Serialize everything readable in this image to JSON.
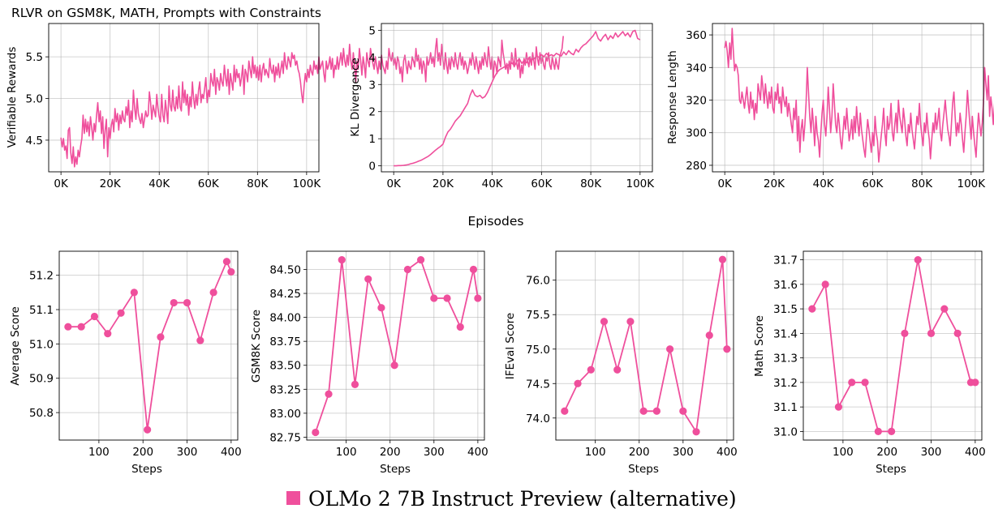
{
  "figure": {
    "title": "RLVR on GSM8K, MATH, Prompts with Constraints",
    "shared_xlabel": "Episodes",
    "legend": {
      "label": "OLMo 2 7B Instruct Preview (alternative)",
      "color": "#ef4f9c"
    }
  },
  "chart_data": [
    {
      "type": "line",
      "ylabel": "Verifiable Rewards",
      "xlim": [
        -5000,
        105000
      ],
      "ylim": [
        4.12,
        5.9
      ],
      "xticks": [
        0,
        20000,
        40000,
        60000,
        80000,
        100000
      ],
      "xtick_labels": [
        "0K",
        "20K",
        "40K",
        "60K",
        "80K",
        "100K"
      ],
      "yticks": [
        4.5,
        5.0,
        5.5
      ],
      "ytick_labels": [
        "4.5",
        "5.0",
        "5.5"
      ],
      "grid": true,
      "color": "#ef4f9c",
      "x_start": 0,
      "x_step": 500,
      "y": [
        4.53,
        4.42,
        4.52,
        4.38,
        4.43,
        4.28,
        4.62,
        4.65,
        4.35,
        4.22,
        4.42,
        4.18,
        4.3,
        4.21,
        4.38,
        4.3,
        4.43,
        4.52,
        4.8,
        4.58,
        4.75,
        4.6,
        4.72,
        4.55,
        4.78,
        4.65,
        4.5,
        4.7,
        4.6,
        4.8,
        4.95,
        4.72,
        4.85,
        4.58,
        4.78,
        4.4,
        4.62,
        4.75,
        4.3,
        4.65,
        4.52,
        4.68,
        4.75,
        4.6,
        4.88,
        4.72,
        4.82,
        4.62,
        4.8,
        4.7,
        4.85,
        4.75,
        4.72,
        4.9,
        4.8,
        4.98,
        4.65,
        4.85,
        4.72,
        5.1,
        4.88,
        4.75,
        5.0,
        4.82,
        4.75,
        4.7,
        4.82,
        4.65,
        4.75,
        4.85,
        4.78,
        4.8,
        5.08,
        4.95,
        4.75,
        4.92,
        4.85,
        4.78,
        5.05,
        4.88,
        4.78,
        4.72,
        5.05,
        4.8,
        4.72,
        4.98,
        4.85,
        4.7,
        5.15,
        4.92,
        4.85,
        5.1,
        4.9,
        4.85,
        5.02,
        4.88,
        5.15,
        4.9,
        4.85,
        5.2,
        4.95,
        5.1,
        4.92,
        5.05,
        4.8,
        5.02,
        4.9,
        5.2,
        5.0,
        4.88,
        5.05,
        4.92,
        5.1,
        5.2,
        4.95,
        5.05,
        5.0,
        5.12,
        5.25,
        4.95,
        5.1,
        5.02,
        5.3,
        5.2,
        5.15,
        5.35,
        5.05,
        5.25,
        5.2,
        5.1,
        5.3,
        5.2,
        5.15,
        5.4,
        5.25,
        5.15,
        5.35,
        5.05,
        5.3,
        5.2,
        5.1,
        5.4,
        5.2,
        5.35,
        5.25,
        5.3,
        5.15,
        5.25,
        5.4,
        5.05,
        5.35,
        5.3,
        5.2,
        5.45,
        5.35,
        5.25,
        5.5,
        5.3,
        5.4,
        5.25,
        5.38,
        5.22,
        5.4,
        5.2,
        5.35,
        5.42,
        5.28,
        5.35,
        5.3,
        5.25,
        5.48,
        5.35,
        5.3,
        5.4,
        5.2,
        5.38,
        5.28,
        5.42,
        5.25,
        5.35,
        5.45,
        5.3,
        5.55,
        5.4,
        5.35,
        5.5,
        5.45,
        5.38,
        5.55,
        5.48,
        5.52,
        5.4,
        5.45,
        5.35,
        5.3,
        5.2,
        5.05,
        4.95,
        5.15,
        5.3,
        5.2,
        5.35,
        5.25,
        5.4,
        5.32,
        5.28,
        5.45,
        5.35,
        5.4,
        5.3,
        5.5,
        5.35,
        5.4,
        5.45,
        5.3,
        5.2,
        5.45,
        5.35,
        5.4,
        5.5,
        5.35,
        5.48,
        5.25,
        5.4,
        5.35,
        5.5,
        5.35,
        5.45,
        5.55,
        5.4,
        5.6,
        5.45,
        5.38,
        5.52,
        5.4,
        5.65,
        5.45,
        5.35,
        5.55,
        5.4,
        5.2,
        5.45,
        5.35,
        5.6,
        5.45,
        5.28,
        5.5,
        5.4,
        5.25,
        5.55,
        5.45,
        5.38,
        5.6,
        5.5,
        5.42,
        5.35,
        5.5,
        5.4,
        5.3,
        5.45,
        5.35,
        5.52,
        5.4,
        5.35,
        5.3,
        5.45,
        5.35,
        5.6,
        5.5,
        5.45,
        5.55,
        5.4,
        5.48,
        5.35,
        5.5,
        5.45,
        5.3,
        5.38,
        5.2,
        5.45,
        5.52,
        5.4,
        5.3,
        5.45,
        5.38,
        5.35,
        5.5,
        5.45,
        5.38,
        5.6,
        5.45,
        5.52,
        5.35,
        5.48,
        5.3,
        5.45,
        5.4,
        5.2,
        5.5,
        5.4,
        5.45,
        5.55,
        5.42,
        5.5,
        5.38,
        5.6,
        5.72,
        5.45,
        5.55,
        5.4,
        5.65,
        5.45,
        5.35,
        5.55,
        5.4,
        5.3,
        5.48,
        5.35,
        5.5,
        5.45,
        5.38,
        5.55,
        5.42,
        5.35,
        5.48,
        5.55,
        5.4,
        5.5,
        5.35,
        5.45,
        5.4,
        5.3,
        5.38,
        5.48,
        5.4,
        5.55,
        5.45,
        5.35,
        5.5,
        5.4,
        5.3,
        5.45,
        5.35,
        5.5,
        5.4,
        5.55,
        5.45,
        5.38,
        5.62,
        5.48,
        5.35,
        5.5,
        5.25,
        5.45,
        5.4,
        5.3,
        5.5,
        5.45,
        5.38,
        5.7,
        5.55,
        5.45,
        5.35,
        5.42,
        5.3,
        5.45,
        5.35,
        5.55,
        5.45,
        5.38,
        5.6,
        5.42,
        5.35,
        5.48,
        5.25,
        5.4,
        5.3,
        5.48,
        5.4,
        5.55,
        5.45,
        5.38,
        5.5,
        5.4,
        5.55,
        5.45,
        5.35,
        5.62,
        5.48,
        5.4,
        5.55,
        5.42,
        5.5,
        5.4,
        5.35,
        5.5,
        5.45,
        5.55,
        5.4,
        5.35,
        5.5,
        5.42,
        5.35,
        5.48,
        5.4,
        5.35,
        5.5,
        5.55,
        5.6,
        5.75
      ]
    },
    {
      "type": "line",
      "ylabel": "KL Divergence",
      "xlim": [
        -5000,
        105000
      ],
      "ylim": [
        -0.22,
        5.25
      ],
      "xticks": [
        0,
        20000,
        40000,
        60000,
        80000,
        100000
      ],
      "xtick_labels": [
        "0K",
        "20K",
        "40K",
        "60K",
        "80K",
        "100K"
      ],
      "yticks": [
        0,
        1,
        2,
        3,
        4,
        5
      ],
      "ytick_labels": [
        "0",
        "1",
        "2",
        "3",
        "4",
        "5"
      ],
      "grid": true,
      "color": "#ef4f9c",
      "x_start": 0,
      "x_step": 1000,
      "y": [
        0.0,
        0.0,
        0.01,
        0.01,
        0.02,
        0.03,
        0.05,
        0.08,
        0.1,
        0.13,
        0.17,
        0.2,
        0.25,
        0.3,
        0.35,
        0.42,
        0.5,
        0.58,
        0.65,
        0.72,
        0.8,
        1.05,
        1.25,
        1.35,
        1.5,
        1.65,
        1.75,
        1.85,
        2.0,
        2.15,
        2.3,
        2.6,
        2.8,
        2.6,
        2.55,
        2.6,
        2.5,
        2.55,
        2.7,
        2.9,
        3.1,
        3.3,
        3.45,
        3.55,
        3.6,
        3.65,
        3.7,
        3.75,
        3.8,
        3.68,
        3.85,
        3.95,
        3.78,
        3.9,
        3.8,
        4.0,
        3.9,
        3.95,
        4.05,
        4.0,
        4.1,
        4.02,
        4.15,
        4.05,
        4.1,
        4.05,
        4.15,
        4.1,
        4.05,
        4.2,
        4.1,
        4.25,
        4.15,
        4.1,
        4.3,
        4.2,
        4.35,
        4.45,
        4.5,
        4.6,
        4.7,
        4.8,
        4.95,
        4.7,
        4.6,
        4.75,
        4.85,
        4.65,
        4.8,
        4.7,
        4.9,
        4.75,
        4.85,
        4.95,
        4.8,
        4.9,
        4.75,
        4.95,
        5.0,
        4.7,
        4.65
      ]
    },
    {
      "type": "line",
      "ylabel": "Response Length",
      "xlim": [
        -5000,
        105000
      ],
      "ylim": [
        276,
        367
      ],
      "xticks": [
        0,
        20000,
        40000,
        60000,
        80000,
        100000
      ],
      "xtick_labels": [
        "0K",
        "20K",
        "40K",
        "60K",
        "80K",
        "100K"
      ],
      "yticks": [
        280,
        300,
        320,
        340,
        360
      ],
      "ytick_labels": [
        "280",
        "300",
        "320",
        "340",
        "360"
      ],
      "grid": true,
      "color": "#ef4f9c",
      "x_start": 0,
      "x_step": 500,
      "y": [
        352,
        356,
        350,
        340,
        355,
        345,
        364,
        350,
        338,
        342,
        340,
        335,
        320,
        318,
        325,
        320,
        315,
        322,
        328,
        318,
        312,
        325,
        315,
        320,
        308,
        318,
        312,
        330,
        325,
        320,
        335,
        328,
        318,
        330,
        322,
        315,
        325,
        318,
        328,
        315,
        312,
        325,
        320,
        330,
        318,
        322,
        312,
        328,
        320,
        316,
        322,
        310,
        318,
        312,
        305,
        300,
        315,
        308,
        320,
        295,
        310,
        288,
        302,
        308,
        295,
        305,
        318,
        340,
        325,
        310,
        300,
        315,
        305,
        292,
        310,
        300,
        295,
        285,
        300,
        312,
        320,
        305,
        298,
        310,
        328,
        315,
        300,
        310,
        330,
        318,
        305,
        300,
        312,
        305,
        295,
        290,
        300,
        310,
        302,
        315,
        305,
        295,
        300,
        308,
        296,
        310,
        300,
        316,
        306,
        298,
        312,
        302,
        296,
        290,
        285,
        298,
        308,
        302,
        295,
        288,
        300,
        292,
        310,
        300,
        295,
        282,
        290,
        298,
        305,
        315,
        300,
        292,
        310,
        302,
        306,
        318,
        300,
        295,
        305,
        312,
        300,
        320,
        310,
        305,
        300,
        315,
        308,
        298,
        292,
        305,
        300,
        312,
        302,
        296,
        290,
        300,
        310,
        305,
        318,
        305,
        298,
        292,
        306,
        300,
        312,
        302,
        296,
        284,
        295,
        306,
        300,
        312,
        302,
        308,
        315,
        300,
        295,
        305,
        312,
        320,
        310,
        302,
        298,
        292,
        305,
        318,
        325,
        310,
        298,
        306,
        300,
        312,
        305,
        296,
        288,
        300,
        310,
        326,
        315,
        305,
        296,
        310,
        300,
        292,
        285,
        300,
        312,
        305,
        298,
        306,
        318,
        340,
        330,
        320,
        335,
        310,
        322,
        315,
        305,
        318,
        300,
        310,
        322,
        308,
        315,
        300,
        295,
        305,
        312,
        302,
        296,
        310,
        300,
        308,
        315,
        325,
        318,
        305,
        296,
        310,
        300,
        312,
        318,
        305,
        296,
        300,
        306,
        314,
        322,
        330,
        348,
        335,
        320,
        310,
        300,
        315,
        306,
        298,
        312,
        302,
        296,
        310,
        305,
        300,
        312,
        302,
        296,
        310,
        322,
        315,
        306,
        300,
        312,
        308,
        302,
        296,
        300,
        315,
        305,
        300,
        310,
        305,
        312,
        302,
        298,
        308,
        305,
        300,
        312,
        320,
        305,
        298,
        302,
        312,
        306,
        300,
        315,
        325,
        318,
        310,
        302,
        296,
        308,
        300,
        305,
        312,
        302,
        298,
        310,
        318,
        305,
        300,
        312,
        306,
        298,
        302,
        310,
        305,
        300,
        320,
        310,
        302,
        296,
        306,
        312,
        305,
        298,
        310,
        302,
        300,
        312,
        306,
        300,
        296,
        305,
        310,
        300,
        315,
        330,
        350,
        335,
        310,
        298,
        306,
        302,
        308,
        300
      ]
    },
    {
      "type": "line",
      "marker": "circle",
      "xlabel": "Steps",
      "ylabel": "Average Score",
      "xlim": [
        10,
        415
      ],
      "ylim": [
        50.72,
        51.27
      ],
      "xticks": [
        100,
        200,
        300,
        400
      ],
      "xtick_labels": [
        "100",
        "200",
        "300",
        "400"
      ],
      "yticks": [
        50.8,
        50.9,
        51.0,
        51.1,
        51.2
      ],
      "ytick_labels": [
        "50.8",
        "50.9",
        "51.0",
        "51.1",
        "51.2"
      ],
      "grid": true,
      "color": "#ef4f9c",
      "x": [
        30,
        60,
        90,
        120,
        150,
        180,
        210,
        240,
        270,
        300,
        330,
        360,
        390,
        400
      ],
      "y": [
        51.05,
        51.05,
        51.08,
        51.03,
        51.09,
        51.15,
        50.75,
        51.02,
        51.12,
        51.12,
        51.01,
        51.15,
        51.24,
        51.21
      ]
    },
    {
      "type": "line",
      "marker": "circle",
      "xlabel": "Steps",
      "ylabel": "GSM8K Score",
      "xlim": [
        10,
        415
      ],
      "ylim": [
        82.72,
        84.69
      ],
      "xticks": [
        100,
        200,
        300,
        400
      ],
      "xtick_labels": [
        "100",
        "200",
        "300",
        "400"
      ],
      "yticks": [
        82.75,
        83.0,
        83.25,
        83.5,
        83.75,
        84.0,
        84.25,
        84.5
      ],
      "ytick_labels": [
        "82.75",
        "83.00",
        "83.25",
        "83.50",
        "83.75",
        "84.00",
        "84.25",
        "84.50"
      ],
      "grid": true,
      "color": "#ef4f9c",
      "x": [
        30,
        60,
        90,
        120,
        150,
        180,
        210,
        240,
        270,
        300,
        330,
        360,
        390,
        400
      ],
      "y": [
        82.8,
        83.2,
        84.6,
        83.3,
        84.4,
        84.1,
        83.5,
        84.5,
        84.6,
        84.2,
        84.2,
        83.9,
        84.5,
        84.2
      ]
    },
    {
      "type": "line",
      "marker": "circle",
      "xlabel": "Steps",
      "ylabel": "IFEval Score",
      "xlim": [
        10,
        415
      ],
      "ylim": [
        73.68,
        76.42
      ],
      "xticks": [
        100,
        200,
        300,
        400
      ],
      "xtick_labels": [
        "100",
        "200",
        "300",
        "400"
      ],
      "yticks": [
        74.0,
        74.5,
        75.0,
        75.5,
        76.0
      ],
      "ytick_labels": [
        "74.0",
        "74.5",
        "75.0",
        "75.5",
        "76.0"
      ],
      "grid": true,
      "color": "#ef4f9c",
      "x": [
        30,
        60,
        90,
        120,
        150,
        180,
        210,
        240,
        270,
        300,
        330,
        360,
        390,
        400
      ],
      "y": [
        74.1,
        74.5,
        74.7,
        75.4,
        74.7,
        75.4,
        74.1,
        74.1,
        75.0,
        74.1,
        73.8,
        75.2,
        76.3,
        75.0
      ]
    },
    {
      "type": "line",
      "marker": "circle",
      "xlabel": "Steps",
      "ylabel": "Math Score",
      "xlim": [
        10,
        415
      ],
      "ylim": [
        30.965,
        31.735
      ],
      "xticks": [
        100,
        200,
        300,
        400
      ],
      "xtick_labels": [
        "100",
        "200",
        "300",
        "400"
      ],
      "yticks": [
        31.0,
        31.1,
        31.2,
        31.3,
        31.4,
        31.5,
        31.6,
        31.7
      ],
      "ytick_labels": [
        "31.0",
        "31.1",
        "31.2",
        "31.3",
        "31.4",
        "31.5",
        "31.6",
        "31.7"
      ],
      "grid": true,
      "color": "#ef4f9c",
      "x": [
        30,
        60,
        90,
        120,
        150,
        180,
        210,
        240,
        270,
        300,
        330,
        360,
        390,
        400
      ],
      "y": [
        31.5,
        31.6,
        31.1,
        31.2,
        31.2,
        31.0,
        31.0,
        31.4,
        31.7,
        31.4,
        31.5,
        31.4,
        31.2,
        31.2
      ]
    }
  ]
}
